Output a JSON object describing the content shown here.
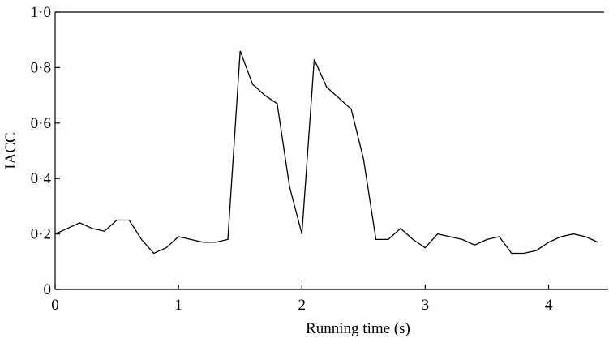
{
  "chart_data": {
    "type": "line",
    "title": "",
    "xlabel": "Running time (s)",
    "ylabel": "IACC",
    "xlim": [
      0,
      4.45
    ],
    "ylim": [
      0,
      1.0
    ],
    "grid": false,
    "x_ticks": [
      {
        "value": 0,
        "label": "0"
      },
      {
        "value": 1,
        "label": "1"
      },
      {
        "value": 2,
        "label": "2"
      },
      {
        "value": 3,
        "label": "3"
      },
      {
        "value": 4,
        "label": "4"
      }
    ],
    "y_ticks": [
      {
        "value": 0,
        "label": "0"
      },
      {
        "value": 0.2,
        "label": "0·2"
      },
      {
        "value": 0.4,
        "label": "0·4"
      },
      {
        "value": 0.6,
        "label": "0·6"
      },
      {
        "value": 0.8,
        "label": "0·8"
      },
      {
        "value": 1.0,
        "label": "1·0"
      }
    ],
    "series": [
      {
        "x": [
          0,
          0.1,
          0.2,
          0.3,
          0.4,
          0.5,
          0.6,
          0.7,
          0.8,
          0.9,
          1.0,
          1.1,
          1.2,
          1.3,
          1.4,
          1.5,
          1.6,
          1.7,
          1.8,
          1.9,
          2.0,
          2.1,
          2.2,
          2.3,
          2.4,
          2.5,
          2.6,
          2.7,
          2.8,
          2.9,
          3.0,
          3.1,
          3.2,
          3.3,
          3.4,
          3.5,
          3.6,
          3.7,
          3.8,
          3.9,
          4.0,
          4.1,
          4.2,
          4.3,
          4.4
        ],
        "y": [
          0.2,
          0.22,
          0.24,
          0.22,
          0.21,
          0.25,
          0.25,
          0.18,
          0.13,
          0.15,
          0.19,
          0.18,
          0.17,
          0.17,
          0.18,
          0.86,
          0.74,
          0.7,
          0.67,
          0.37,
          0.2,
          0.83,
          0.73,
          0.69,
          0.65,
          0.47,
          0.18,
          0.18,
          0.22,
          0.18,
          0.15,
          0.2,
          0.19,
          0.18,
          0.16,
          0.18,
          0.19,
          0.13,
          0.13,
          0.14,
          0.17,
          0.19,
          0.2,
          0.19,
          0.17
        ]
      }
    ]
  }
}
